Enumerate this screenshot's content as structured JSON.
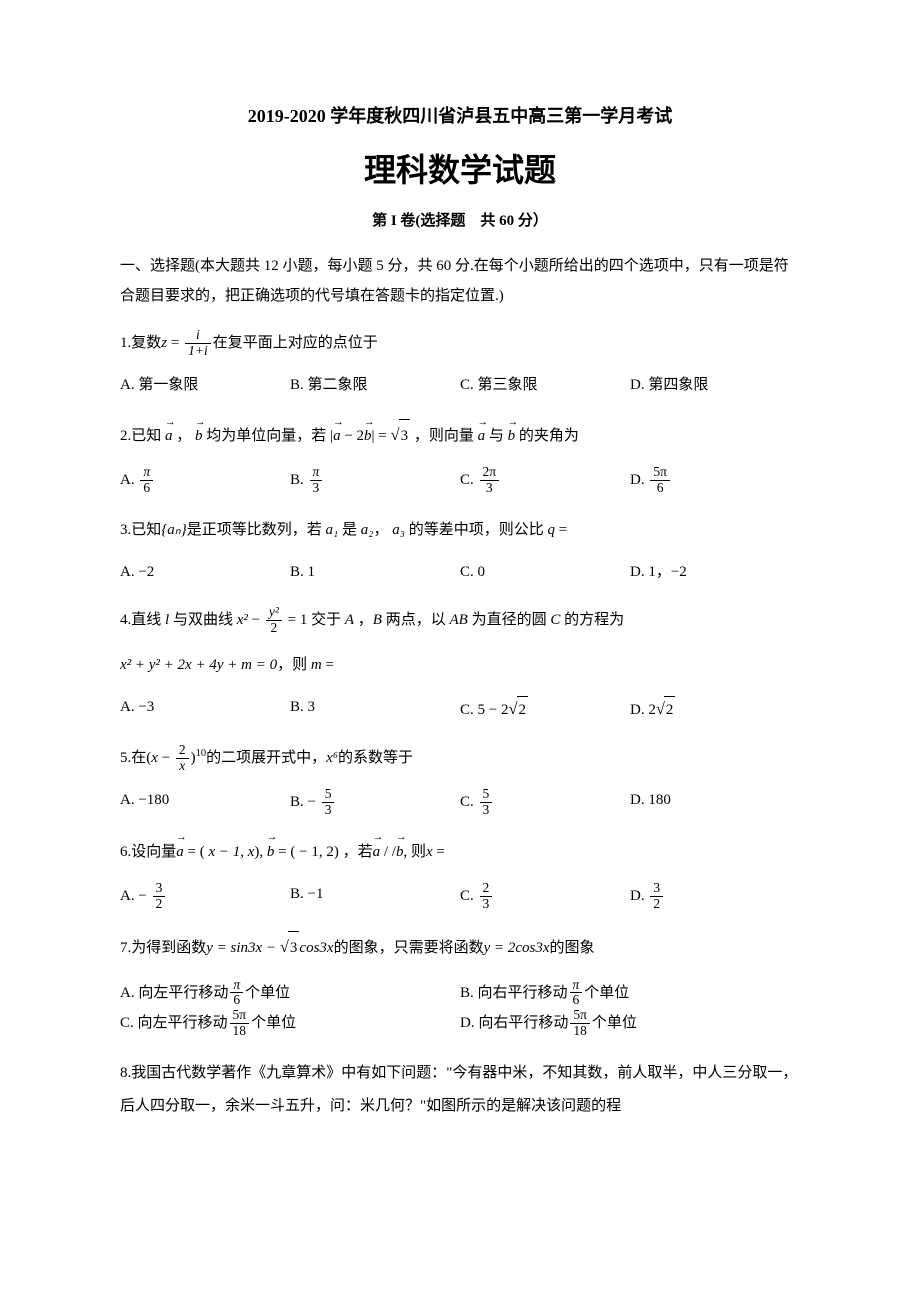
{
  "header": {
    "subtitle": "2019-2020 学年度秋四川省泸县五中高三第一学月考试",
    "main_title": "理科数学试题",
    "section_label": "第 I 卷(选择题　共 60 分）"
  },
  "intro": "一、选择题(本大题共 12 小题，每小题 5 分，共 60 分.在每个小题所给出的四个选项中，只有一项是符合题目要求的，把正确选项的代号填在答题卡的指定位置.)",
  "questions": [
    {
      "num": "1.",
      "stem_pre": "复数",
      "stem_post": "在复平面上对应的点位于",
      "z_var": "z",
      "eq": " = ",
      "frac_num": "i",
      "frac_den": "1+i",
      "opts": [
        "A. 第一象限",
        "B. 第二象限",
        "C. 第三象限",
        "D. 第四象限"
      ]
    },
    {
      "num": "2.",
      "stem_pre": "已知",
      "vec_a": "a",
      "comma": "，",
      "vec_b": "b",
      "stem_mid1": " 均为单位向量，若 ",
      "abs_expr": "a − 2b",
      "eq_s": " = ",
      "sqrt3": "3",
      "stem_mid2": " ，则向量 ",
      "stem_mid3": " 与 ",
      "stem_post": " 的夹角为",
      "opts_label": [
        "A.",
        "B.",
        "C.",
        "D."
      ],
      "opts_num": [
        "π",
        "π",
        "2π",
        "5π"
      ],
      "opts_den": [
        "6",
        "3",
        "3",
        "6"
      ]
    },
    {
      "num": "3.",
      "stem_pre": "已知",
      "seq": "{aₙ}",
      "stem_mid1": "是正项等比数列，若",
      "a1": "a₁",
      "stem_mid2": "是",
      "a2": "a₂",
      "comma": "，",
      "a3": "a₃",
      "stem_mid3": "的等差中项，则公比",
      "q": "q",
      "eq": " =",
      "opts": [
        "A. −2",
        "B. 1",
        "C. 0",
        "D. 1，−2"
      ]
    },
    {
      "num": "4.",
      "stem_pre": "直线",
      "l_var": "l",
      "stem_mid1": " 与双曲线 ",
      "x2": "x²",
      "minus": " − ",
      "frac_num": "y²",
      "frac_den": "2",
      "eq1": " = 1",
      "stem_mid2": " 交于 ",
      "A": "A",
      "comma": " ，",
      "B": "B",
      "stem_mid3": " 两点，以 ",
      "AB": "AB",
      "stem_mid4": " 为直径的圆 ",
      "C": "C",
      "stem_post": " 的方程为",
      "line2_expr": "x² + y² + 2x + 4y + m = 0",
      "line2_post": "，则",
      "m": "m",
      "eq2": " =",
      "opts_label": [
        "A. −3",
        "B. 3",
        "C.",
        "D."
      ],
      "optC_pre": "5 − 2",
      "optC_sqrt": "2",
      "optD_pre": "2",
      "optD_sqrt": "2"
    },
    {
      "num": "5.",
      "stem_pre": "在",
      "paren_open": "(",
      "x": "x",
      "minus": " − ",
      "frac_num": "2",
      "frac_den": "x",
      "paren_close": ")",
      "exp": "10",
      "stem_mid": "的二项展开式中，",
      "x6": "x⁶",
      "stem_post": "的系数等于",
      "opts_label": [
        "A. −180",
        "B.",
        "C.",
        "D. 180"
      ],
      "optB_sign": "− ",
      "optB_num": "5",
      "optB_den": "3",
      "optC_num": "5",
      "optC_den": "3"
    },
    {
      "num": "6.",
      "stem_pre": "设向量",
      "vec_a": "a",
      "eq1": " = ( ",
      "a_comp": "x − 1, x",
      "close1": "), ",
      "vec_b": "b",
      "eq2": " = ( − 1, 2) ，若",
      "parallel": " / /",
      "stem_post": ", 则",
      "x": "x",
      "eq3": " =",
      "opts_label": [
        "A.",
        "B. −1",
        "C.",
        "D."
      ],
      "optA_sign": "− ",
      "optA_num": "3",
      "optA_den": "2",
      "optC_num": "2",
      "optC_den": "3",
      "optD_num": "3",
      "optD_den": "2"
    },
    {
      "num": "7.",
      "stem_pre": "为得到函数",
      "y1": "y = sin3x − ",
      "sqrt3": "3",
      "cos3x": "cos3x",
      "stem_mid": "的图象，只需要将函数",
      "y2": "y = 2cos3x",
      "stem_post": "的图象",
      "optA_pre": "A. 向左平行移动",
      "optA_num": "π",
      "optA_den": "6",
      "optA_post": "个单位",
      "optB_pre": "B. 向右平行移动",
      "optB_num": "π",
      "optB_den": "6",
      "optB_post": "个单位",
      "optC_pre": "C. 向左平行移动",
      "optC_num": "5π",
      "optC_den": "18",
      "optC_post": "个单位",
      "optD_pre": "D. 向右平行移动",
      "optD_num": "5π",
      "optD_den": "18",
      "optD_post": "个单位"
    },
    {
      "num": "8.",
      "stem": "我国古代数学著作《九章算术》中有如下问题：\"今有器中米，不知其数，前人取半，中人三分取一，后人四分取一，余米一斗五升，问：米几何？\"如图所示的是解决该问题的程"
    }
  ],
  "colors": {
    "text": "#000000",
    "background": "#ffffff"
  },
  "typography": {
    "body_fontsize": 15,
    "title_main_fontsize": 32,
    "title_sub_fontsize": 18
  }
}
